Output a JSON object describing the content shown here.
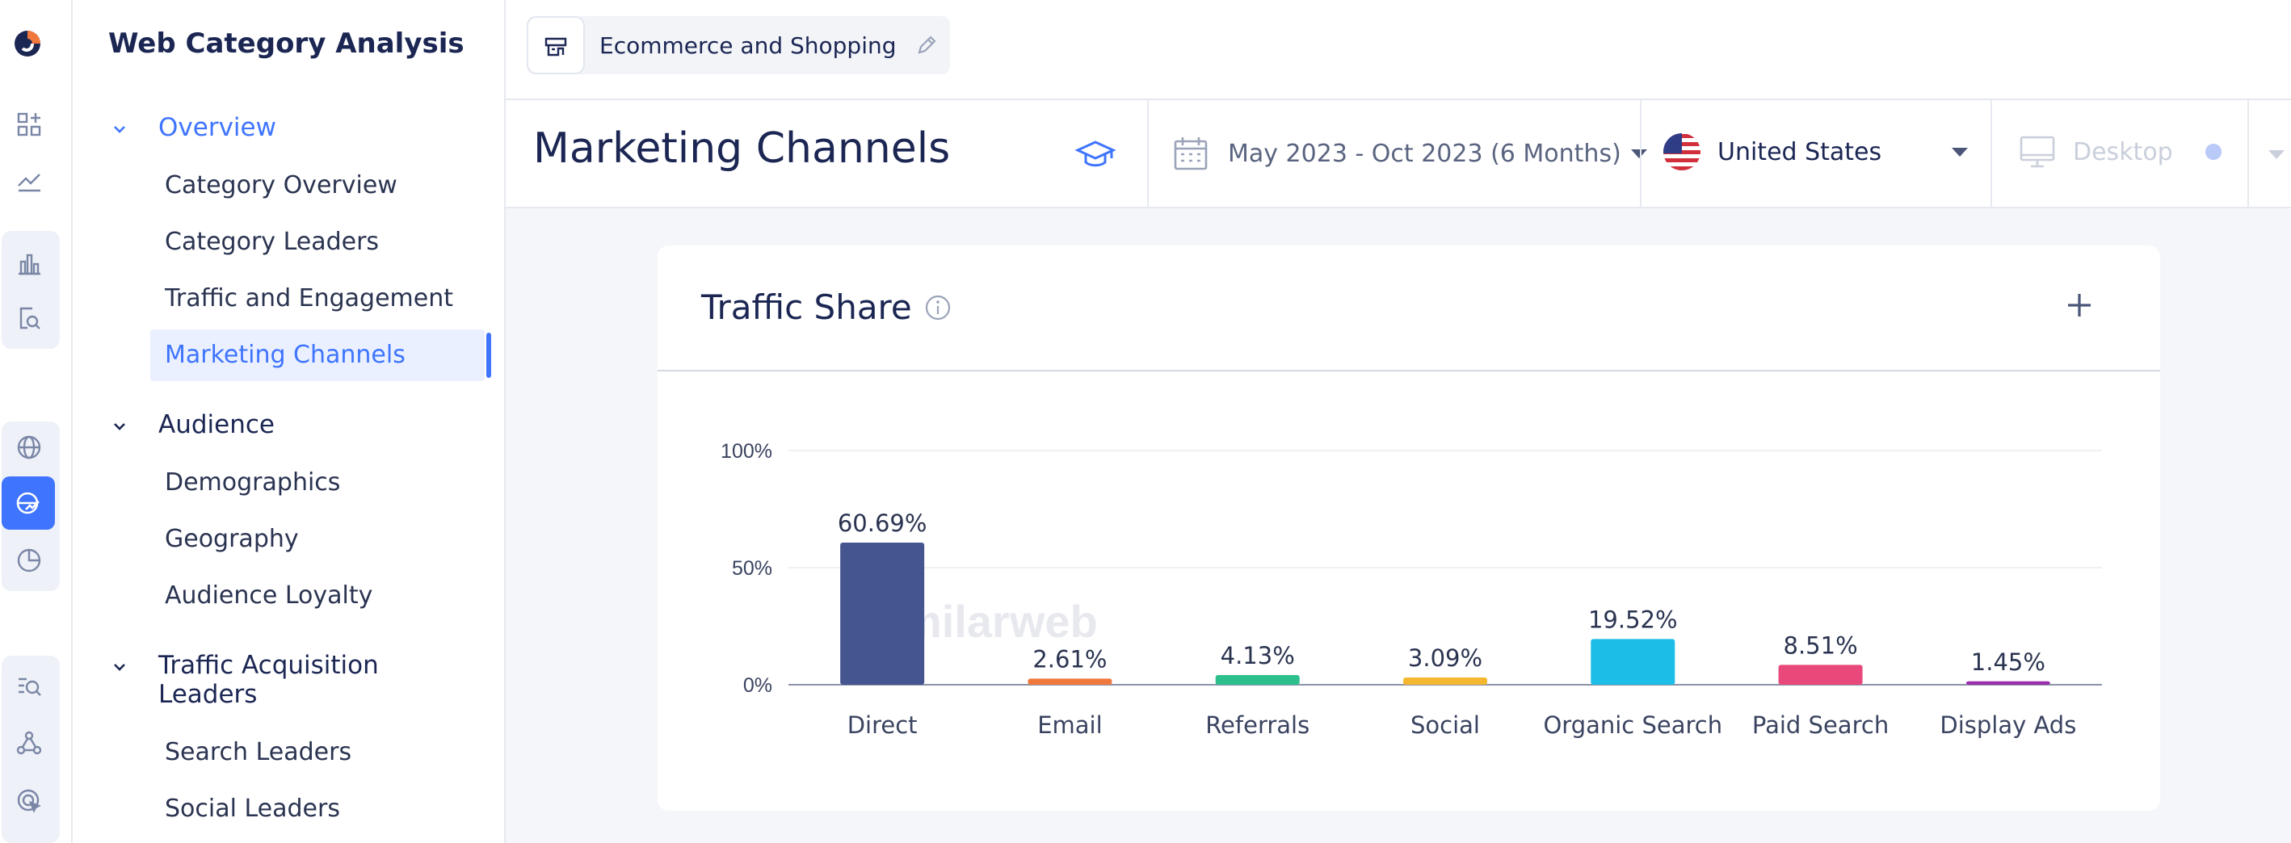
{
  "rail": {
    "icons": [
      "similarweb-logo-icon",
      "dashboard-add-icon",
      "trend-line-icon",
      "bar-chart-icon",
      "search-doc-icon",
      "globe-icon",
      "globe-chart-icon",
      "pie-chart-icon",
      "list-search-icon",
      "network-icon",
      "target-cursor-icon"
    ]
  },
  "nav": {
    "title": "Web Category Analysis",
    "sections": [
      {
        "label": "Overview",
        "items": [
          "Category Overview",
          "Category Leaders",
          "Traffic and Engagement",
          "Marketing Channels"
        ]
      },
      {
        "label": "Audience",
        "items": [
          "Demographics",
          "Geography",
          "Audience Loyalty"
        ]
      },
      {
        "label": "Traffic Acquisition Leaders",
        "items": [
          "Search Leaders",
          "Social Leaders"
        ]
      }
    ],
    "selected": "Marketing Channels"
  },
  "topbar": {
    "category": "Ecommerce and Shopping"
  },
  "header": {
    "page_title": "Marketing Channels",
    "date_range": "May 2023 - Oct 2023 (6 Months)",
    "country": "United States",
    "device": "Desktop"
  },
  "card": {
    "title": "Traffic Share",
    "watermark": "similarweb"
  },
  "colors": {
    "accent": "#3e74fe",
    "direct": "#45558f",
    "email": "#f1783d",
    "referrals": "#2dbf8c",
    "social": "#f6b830",
    "organic": "#1cbde6",
    "paid": "#e9487a",
    "display": "#9c2fae"
  },
  "chart_data": {
    "type": "bar",
    "categories": [
      "Direct",
      "Email",
      "Referrals",
      "Social",
      "Organic Search",
      "Paid Search",
      "Display Ads"
    ],
    "values": [
      60.69,
      2.61,
      4.13,
      3.09,
      19.52,
      8.51,
      1.45
    ],
    "value_labels": [
      "60.69%",
      "2.61%",
      "4.13%",
      "3.09%",
      "19.52%",
      "8.51%",
      "1.45%"
    ],
    "colors": [
      "#45558f",
      "#f1783d",
      "#2dbf8c",
      "#f6b830",
      "#1cbde6",
      "#e9487a",
      "#9c2fae"
    ],
    "yticks": [
      "0%",
      "50%",
      "100%"
    ],
    "ylim": [
      0,
      100
    ],
    "grid": true
  }
}
